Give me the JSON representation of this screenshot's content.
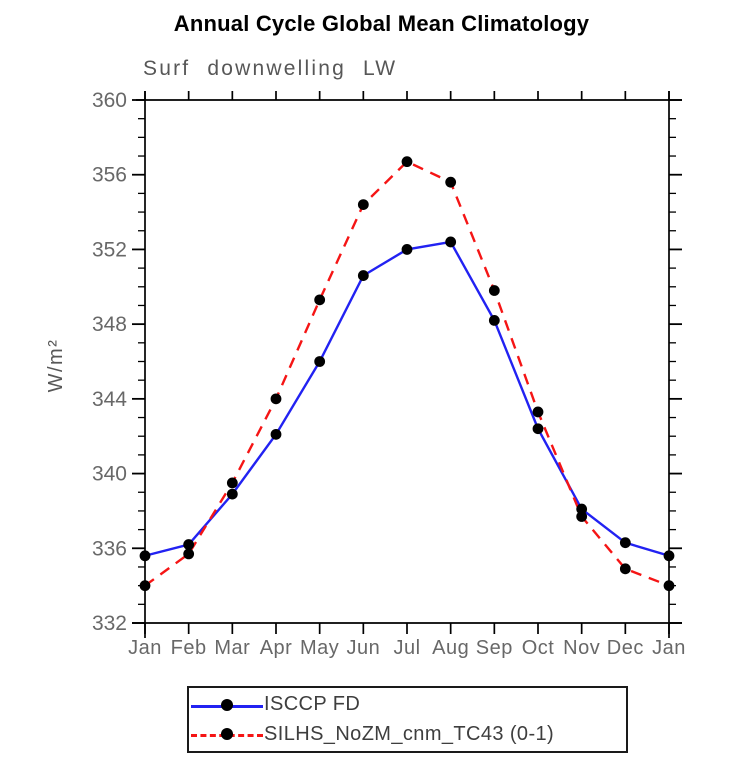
{
  "title": "Annual Cycle Global Mean Climatology",
  "chart_data": {
    "type": "line",
    "subtitle": "Surf downwelling LW",
    "ylabel": "W/m²",
    "xlabel": "",
    "categories": [
      "Jan",
      "Feb",
      "Mar",
      "Apr",
      "May",
      "Jun",
      "Jul",
      "Aug",
      "Sep",
      "Oct",
      "Nov",
      "Dec",
      "Jan"
    ],
    "series": [
      {
        "name": "ISCCP FD",
        "color": "#2222f2",
        "line_style": "solid",
        "marker": "black-dot",
        "values": [
          335.6,
          336.2,
          338.9,
          342.1,
          346.0,
          350.6,
          352.0,
          352.4,
          348.2,
          342.4,
          338.1,
          336.3,
          335.6
        ]
      },
      {
        "name": "SILHS_NoZM_cnm_TC43 (0-1)",
        "color": "#f51515",
        "line_style": "dashed",
        "marker": "black-dot",
        "values": [
          334.0,
          335.7,
          339.5,
          344.0,
          349.3,
          354.4,
          356.7,
          355.6,
          349.8,
          343.3,
          337.7,
          334.9,
          334.0
        ]
      }
    ],
    "ylim": [
      332,
      360
    ],
    "y_major_step": 4,
    "y_minor_step": 1,
    "y_tick_labels": [
      "332",
      "336",
      "340",
      "344",
      "348",
      "352",
      "356",
      "360"
    ],
    "grid": false,
    "legend_position": "bottom",
    "marker_color": "#000000",
    "axis_color": "#000000",
    "tick_label_color": "#686868",
    "axis_title_color": "#575757"
  }
}
